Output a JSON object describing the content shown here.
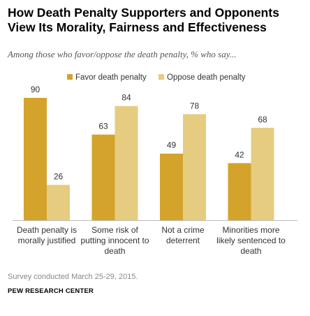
{
  "title": "How Death Penalty Supporters and Opponents View Its Morality, Fairness and Effectiveness",
  "subtitle": "Among those who favor/oppose the death penalty, % who say...",
  "note": "Survey conducted March 25-29, 2015.",
  "source": "PEW RESEARCH CENTER",
  "chart_data": {
    "type": "bar",
    "categories": [
      [
        "Death penalty is",
        "morally justified"
      ],
      [
        "Some risk of",
        "putting innocent to",
        "death"
      ],
      [
        "Not a crime",
        "deterrent"
      ],
      [
        "Minorities more",
        "likely sentenced to",
        "death"
      ]
    ],
    "series": [
      {
        "name": "Favor death penalty",
        "values": [
          90,
          63,
          49,
          42
        ],
        "color": "#d3a32b"
      },
      {
        "name": "Oppose death penalty",
        "values": [
          26,
          84,
          78,
          68
        ],
        "color": "#e6cc80"
      }
    ],
    "ylim": [
      0,
      90
    ],
    "data_labels": true,
    "legend": "top",
    "grid": false,
    "colors": {
      "axis": "#bbbbbb",
      "label": "#333333"
    }
  }
}
